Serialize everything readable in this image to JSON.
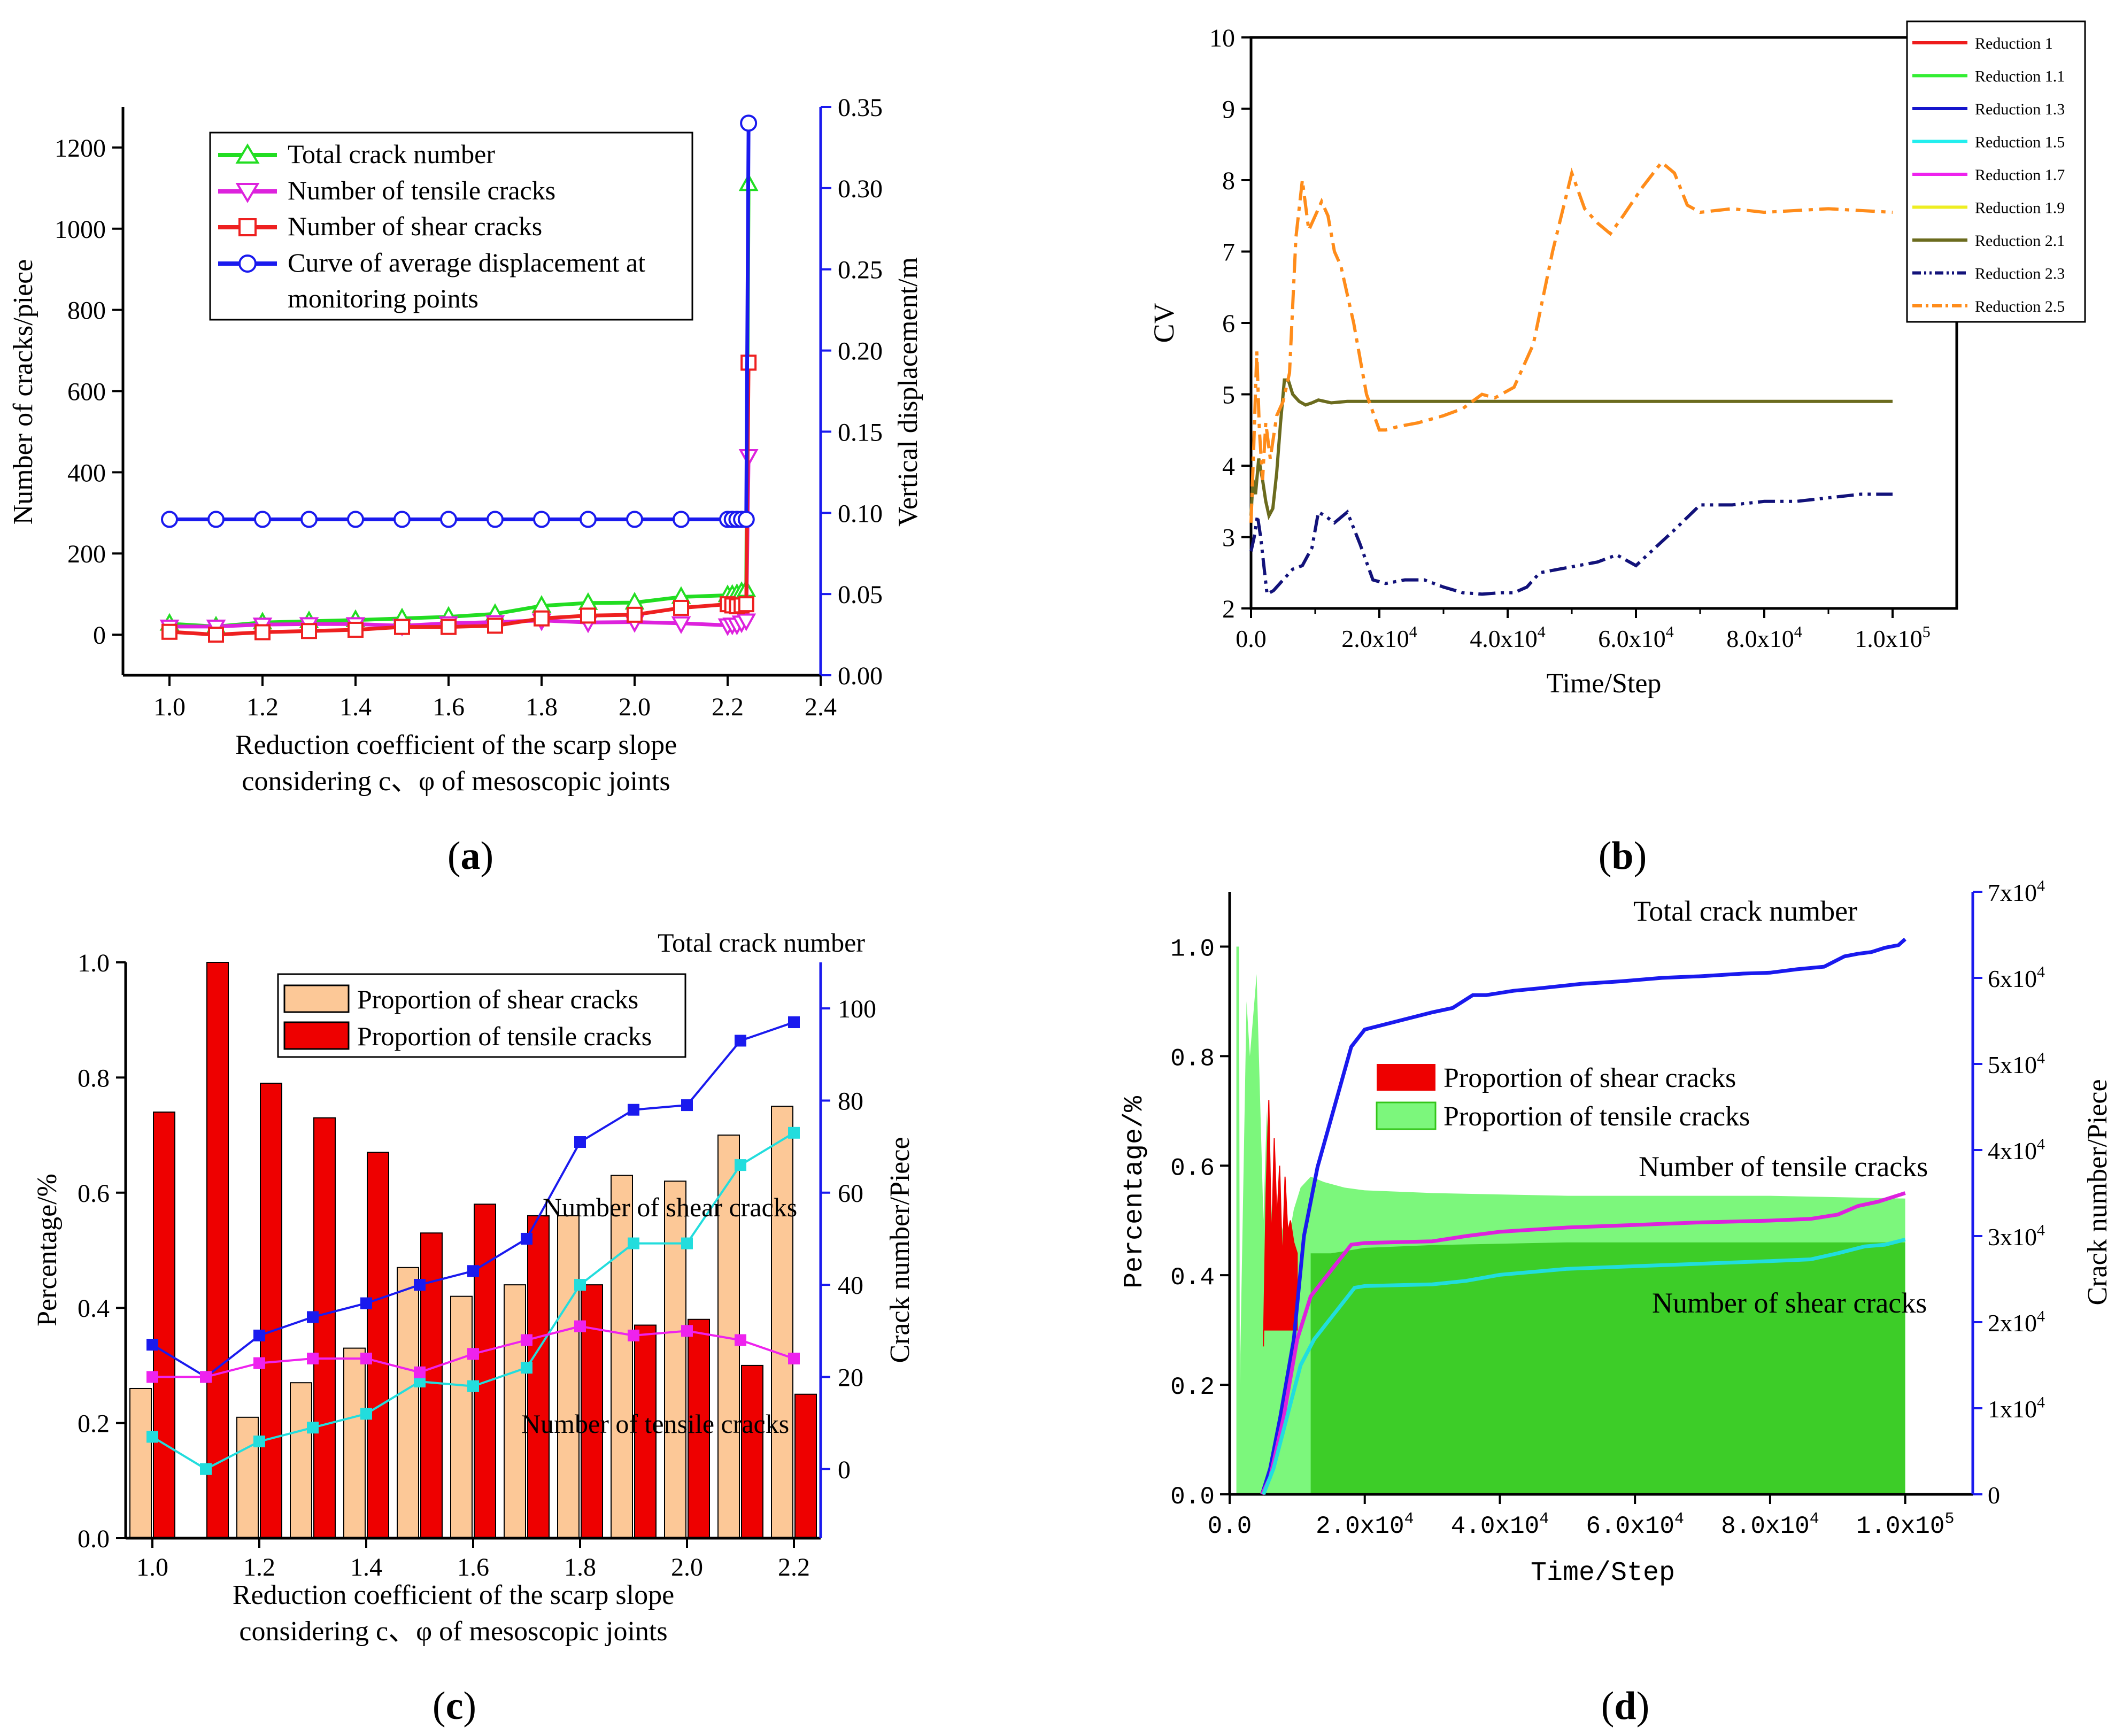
{
  "figure_label": "Multi-panel figure (a)-(d)",
  "chart_data": [
    {
      "panel": "(a)",
      "panel_letter": "a",
      "type": "line",
      "xlabel_line1": "Reduction coefficient of the scarp slope",
      "xlabel_line2": "considering c、φ of mesoscopic joints",
      "ylabel": "Number of cracks/piece",
      "y2label": "Vertical displacement/m",
      "xlim": [
        0.9,
        2.4
      ],
      "ylim": [
        -100,
        1300
      ],
      "y2lim": [
        0,
        0.35
      ],
      "xticks": [
        "1.0",
        "1.2",
        "1.4",
        "1.6",
        "1.8",
        "2.0",
        "2.2",
        "2.4"
      ],
      "yticks": [
        "0",
        "200",
        "400",
        "600",
        "800",
        "1000",
        "1200"
      ],
      "y2ticks": [
        "0.00",
        "0.05",
        "0.10",
        "0.15",
        "0.20",
        "0.25",
        "0.30",
        "0.35"
      ],
      "legend": [
        "Total crack number",
        "Number of tensile cracks",
        "Number of shear cracks",
        "Curve of average displacement at",
        "monitoring points"
      ],
      "colors": {
        "total": "#22dd22",
        "tensile": "#dd22dd",
        "shear": "#ee2020",
        "disp": "#1a1aee"
      },
      "x": [
        1.0,
        1.1,
        1.2,
        1.3,
        1.4,
        1.5,
        1.6,
        1.7,
        1.8,
        1.9,
        2.0,
        2.1,
        2.2,
        2.21,
        2.22,
        2.23,
        2.24,
        2.245
      ],
      "series": [
        {
          "name": "Total crack number",
          "axis": "left",
          "values": [
            27,
            20,
            30,
            33,
            36,
            40,
            44,
            51,
            71,
            78,
            79,
            93,
            97,
            98,
            100,
            105,
            110,
            1110
          ]
        },
        {
          "name": "Number of tensile cracks",
          "axis": "left",
          "values": [
            20,
            20,
            25,
            26,
            26,
            22,
            28,
            31,
            35,
            30,
            31,
            28,
            23,
            25,
            25,
            30,
            35,
            440
          ]
        },
        {
          "name": "Number of shear cracks",
          "axis": "left",
          "values": [
            7,
            0,
            6,
            9,
            12,
            19,
            19,
            22,
            40,
            47,
            49,
            66,
            75,
            72,
            70,
            72,
            75,
            670
          ]
        },
        {
          "name": "Curve of average displacement at monitoring points",
          "axis": "right",
          "values": [
            0.096,
            0.096,
            0.096,
            0.096,
            0.096,
            0.096,
            0.096,
            0.096,
            0.096,
            0.096,
            0.096,
            0.096,
            0.096,
            0.096,
            0.096,
            0.096,
            0.096,
            0.34
          ]
        }
      ]
    },
    {
      "panel": "(b)",
      "panel_letter": "b",
      "type": "line",
      "xlabel": "Time/Step",
      "ylabel": "CV",
      "xlim": [
        0,
        110000
      ],
      "ylim": [
        2,
        10
      ],
      "yticks": [
        "2",
        "3",
        "4",
        "5",
        "6",
        "7",
        "8",
        "9",
        "10"
      ],
      "xticks": [
        {
          "text": "0.0",
          "value": 0
        },
        {
          "text": "2.0x10",
          "sup": "4",
          "value": 20000
        },
        {
          "text": "4.0x10",
          "sup": "4",
          "value": 40000
        },
        {
          "text": "6.0x10",
          "sup": "4",
          "value": 60000
        },
        {
          "text": "8.0x10",
          "sup": "4",
          "value": 80000
        },
        {
          "text": "1.0x10",
          "sup": "5",
          "value": 100000
        }
      ],
      "legend": [
        "Reduction 1",
        "Reduction 1.1",
        "Reduction 1.3",
        "Reduction 1.5",
        "Reduction 1.7",
        "Reduction 1.9",
        "Reduction 2.1",
        "Reduction 2.3",
        "Reduction 2.5"
      ],
      "legend_colors": [
        "#ee1c1c",
        "#33ee33",
        "#1515cc",
        "#22eeee",
        "#ee22ee",
        "#eeee22",
        "#6b6b1e",
        "#12127a",
        "#ff8c1a"
      ],
      "legend_dashed": [
        false,
        false,
        false,
        false,
        false,
        false,
        false,
        true,
        true
      ],
      "series": [
        {
          "name": "Reduction 1-2.1 (overlapping)",
          "color": "#6b6b1e",
          "x": [
            0,
            300,
            700,
            1200,
            1800,
            2300,
            2800,
            3400,
            4000,
            4600,
            5200,
            5800,
            6500,
            7500,
            8500,
            9500,
            10500,
            11500,
            12500,
            15000,
            20000,
            30000,
            50000,
            100000
          ],
          "y": [
            3.3,
            3.8,
            3.6,
            4.1,
            3.8,
            3.5,
            3.3,
            3.4,
            3.9,
            4.6,
            5.2,
            5.2,
            5.0,
            4.9,
            4.85,
            4.88,
            4.92,
            4.9,
            4.88,
            4.9,
            4.9,
            4.9,
            4.9,
            4.9
          ]
        },
        {
          "name": "Reduction 2.3",
          "color": "#12127a",
          "x": [
            0,
            500,
            1000,
            1500,
            2000,
            2500,
            3500,
            5000,
            6500,
            8000,
            9500,
            10500,
            11500,
            13000,
            15000,
            17000,
            19000,
            21000,
            24000,
            27000,
            30000,
            33000,
            36000,
            39000,
            41000,
            43000,
            45000,
            48000,
            51000,
            54000,
            57000,
            60000,
            63000,
            66000,
            70000,
            75000,
            80000,
            85000,
            90000,
            95000,
            100000
          ],
          "y": [
            2.8,
            3.0,
            3.3,
            3.0,
            2.6,
            2.2,
            2.25,
            2.4,
            2.55,
            2.6,
            2.85,
            3.35,
            3.3,
            3.2,
            3.35,
            2.9,
            2.4,
            2.35,
            2.4,
            2.4,
            2.3,
            2.22,
            2.2,
            2.22,
            2.22,
            2.3,
            2.5,
            2.55,
            2.6,
            2.65,
            2.75,
            2.6,
            2.85,
            3.1,
            3.45,
            3.45,
            3.5,
            3.5,
            3.55,
            3.6,
            3.6
          ]
        },
        {
          "name": "Reduction 2.5",
          "color": "#ff8c1a",
          "x": [
            0,
            400,
            900,
            1300,
            1800,
            2300,
            3000,
            4000,
            5000,
            6000,
            7000,
            8000,
            9000,
            10000,
            11000,
            12000,
            13000,
            14000,
            16000,
            18000,
            20000,
            21000,
            23000,
            26000,
            30000,
            33000,
            36000,
            38000,
            41000,
            44000,
            47000,
            50000,
            52000,
            54000,
            56000,
            58000,
            61000,
            64000,
            66000,
            68000,
            70000,
            75000,
            80000,
            90000,
            100000
          ],
          "y": [
            3.2,
            4.2,
            5.6,
            4.5,
            3.8,
            4.6,
            4.1,
            4.7,
            4.9,
            5.3,
            7.2,
            8.0,
            7.3,
            7.5,
            7.7,
            7.5,
            7.0,
            6.8,
            6.0,
            5.0,
            4.5,
            4.5,
            4.55,
            4.6,
            4.7,
            4.8,
            5.0,
            4.95,
            5.1,
            5.7,
            7.0,
            8.1,
            7.6,
            7.4,
            7.25,
            7.5,
            7.9,
            8.25,
            8.1,
            7.65,
            7.55,
            7.6,
            7.55,
            7.6,
            7.55
          ]
        }
      ]
    },
    {
      "panel": "(c)",
      "panel_letter": "c",
      "type": "bar",
      "xlabel_line1": "Reduction coefficient of the scarp slope",
      "xlabel_line2": "considering c、φ of mesoscopic joints",
      "ylabel": "Percentage/%",
      "y2label": "Crack number/Piece",
      "ylim": [
        0,
        1.0
      ],
      "y2lim": [
        -15,
        110
      ],
      "xlim": [
        0.95,
        2.25
      ],
      "xticks": [
        "1.0",
        "1.2",
        "1.4",
        "1.6",
        "1.8",
        "2.0",
        "2.2"
      ],
      "yticks": [
        "0.0",
        "0.2",
        "0.4",
        "0.6",
        "0.8",
        "1.0"
      ],
      "y2ticks": [
        "0",
        "20",
        "40",
        "60",
        "80",
        "100"
      ],
      "categories": [
        1.0,
        1.1,
        1.2,
        1.3,
        1.4,
        1.5,
        1.6,
        1.7,
        1.8,
        1.9,
        2.0,
        2.1,
        2.2
      ],
      "legend": [
        "Proportion of shear cracks",
        "Proportion of tensile cracks"
      ],
      "bar_colors": {
        "shear": "#fcc897",
        "tensile": "#ee0000"
      },
      "bars_shear": [
        0.26,
        0.0,
        0.21,
        0.27,
        0.33,
        0.47,
        0.42,
        0.44,
        0.56,
        0.63,
        0.62,
        0.7,
        0.75
      ],
      "bars_tensile": [
        0.74,
        1.0,
        0.79,
        0.73,
        0.67,
        0.53,
        0.58,
        0.56,
        0.44,
        0.37,
        0.38,
        0.3,
        0.25
      ],
      "annotations": [
        "Total crack number",
        "Number of shear cracks",
        "Number of tensile cracks"
      ],
      "series": [
        {
          "name": "Total crack number",
          "color": "#1a1aee",
          "values": [
            27,
            20,
            29,
            33,
            36,
            40,
            43,
            50,
            71,
            78,
            79,
            93,
            97
          ]
        },
        {
          "name": "Number of shear cracks",
          "color": "#22dddd",
          "values": [
            7,
            0,
            6,
            9,
            12,
            19,
            18,
            22,
            40,
            49,
            49,
            66,
            73
          ]
        },
        {
          "name": "Number of tensile cracks",
          "color": "#ee22ee",
          "values": [
            20,
            20,
            23,
            24,
            24,
            21,
            25,
            28,
            31,
            29,
            30,
            28,
            24
          ]
        }
      ]
    },
    {
      "panel": "(d)",
      "panel_letter": "d",
      "type": "area",
      "xlabel": "Time/Step",
      "ylabel": "Percentage/%",
      "y2label": "Crack number/Piece",
      "xlim": [
        0,
        110000
      ],
      "ylim": [
        0,
        1.1
      ],
      "y2lim": [
        0,
        70000
      ],
      "yticks": [
        "0.0",
        "0.2",
        "0.4",
        "0.6",
        "0.8",
        "1.0"
      ],
      "xticks": [
        {
          "text": "0.0",
          "value": 0
        },
        {
          "text": "2.0x10",
          "sup": "4",
          "value": 20000
        },
        {
          "text": "4.0x10",
          "sup": "4",
          "value": 40000
        },
        {
          "text": "6.0x10",
          "sup": "4",
          "value": 60000
        },
        {
          "text": "8.0x10",
          "sup": "4",
          "value": 80000
        },
        {
          "text": "1.0x10",
          "sup": "5",
          "value": 100000
        }
      ],
      "y2ticks": [
        {
          "text": "0",
          "value": 0
        },
        {
          "text": "1x10",
          "sup": "4",
          "value": 10000
        },
        {
          "text": "2x10",
          "sup": "4",
          "value": 20000
        },
        {
          "text": "3x10",
          "sup": "4",
          "value": 30000
        },
        {
          "text": "4x10",
          "sup": "4",
          "value": 40000
        },
        {
          "text": "5x10",
          "sup": "4",
          "value": 50000
        },
        {
          "text": "6x10",
          "sup": "4",
          "value": 60000
        },
        {
          "text": "7x10",
          "sup": "4",
          "value": 70000
        }
      ],
      "legend": [
        "Proportion of shear cracks",
        "Proportion of tensile cracks"
      ],
      "annotations": [
        "Total crack number",
        "Number of tensile cracks",
        "Number of shear cracks"
      ],
      "fill_colors": {
        "shear": "#ee0000",
        "tensile_light": "#7cf77c",
        "tensile_dark": "#33c51a"
      },
      "shear_area": {
        "x": [
          5000,
          5400,
          5800,
          6200,
          6600,
          7000,
          7400,
          7800,
          8200,
          8600,
          9000,
          9500,
          10000
        ],
        "y": [
          0.27,
          0.55,
          0.72,
          0.45,
          0.65,
          0.5,
          0.6,
          0.42,
          0.58,
          0.48,
          0.5,
          0.46,
          0.44
        ]
      },
      "tensile_upper": {
        "x": [
          1000,
          1400,
          1500,
          2500,
          3000,
          4000,
          5000,
          5500,
          6500,
          7500,
          8500,
          9500,
          10500,
          12000,
          14000,
          17000,
          20000,
          30000,
          50000,
          80000,
          100000
        ],
        "y": [
          1.0,
          1.0,
          0.2,
          0.9,
          0.8,
          0.95,
          0.5,
          0.7,
          0.45,
          0.5,
          0.45,
          0.52,
          0.56,
          0.58,
          0.57,
          0.56,
          0.555,
          0.55,
          0.545,
          0.545,
          0.54
        ]
      },
      "tensile_lower": {
        "x": [
          12000,
          15000,
          20000,
          30000,
          50000,
          80000,
          100000
        ],
        "y": [
          0.44,
          0.44,
          0.45,
          0.455,
          0.46,
          0.46,
          0.46
        ]
      },
      "series": [
        {
          "name": "Total crack number",
          "color": "#1a1aee",
          "x": [
            4800,
            6000,
            7500,
            9500,
            11000,
            13000,
            15500,
            18000,
            20000,
            25000,
            30000,
            33000,
            36000,
            38000,
            42000,
            46000,
            52000,
            58000,
            64000,
            70000,
            76000,
            80000,
            84000,
            88000,
            91000,
            93000,
            95000,
            97000,
            99000,
            100000
          ],
          "y": [
            0,
            3000,
            9000,
            18000,
            30000,
            38000,
            45000,
            52000,
            54000,
            55000,
            56000,
            56500,
            58000,
            58000,
            58500,
            58800,
            59300,
            59600,
            60000,
            60200,
            60500,
            60600,
            61000,
            61300,
            62500,
            62800,
            63000,
            63500,
            63800,
            64500
          ]
        },
        {
          "name": "Number of tensile cracks",
          "color": "#dd22dd",
          "x": [
            4800,
            6000,
            8000,
            10000,
            12000,
            14000,
            16000,
            18000,
            20000,
            25000,
            30000,
            35000,
            40000,
            50000,
            60000,
            70000,
            80000,
            86000,
            90000,
            93000,
            96000,
            98000,
            100000
          ],
          "y": [
            0,
            2000,
            9000,
            18000,
            23000,
            25000,
            27000,
            29000,
            29200,
            29300,
            29400,
            30000,
            30500,
            31000,
            31300,
            31600,
            31800,
            32000,
            32500,
            33500,
            34000,
            34500,
            35000
          ]
        },
        {
          "name": "Number of shear cracks",
          "color": "#22dddd",
          "x": [
            5000,
            6500,
            8500,
            10500,
            12500,
            14500,
            16500,
            18500,
            20000,
            25000,
            30000,
            35000,
            40000,
            50000,
            60000,
            70000,
            80000,
            86000,
            90000,
            94000,
            97000,
            100000
          ],
          "y": [
            0,
            3000,
            9000,
            15000,
            18000,
            20000,
            22000,
            24000,
            24200,
            24300,
            24400,
            24800,
            25500,
            26200,
            26500,
            26800,
            27100,
            27300,
            28000,
            28800,
            29000,
            29600
          ]
        }
      ]
    }
  ]
}
